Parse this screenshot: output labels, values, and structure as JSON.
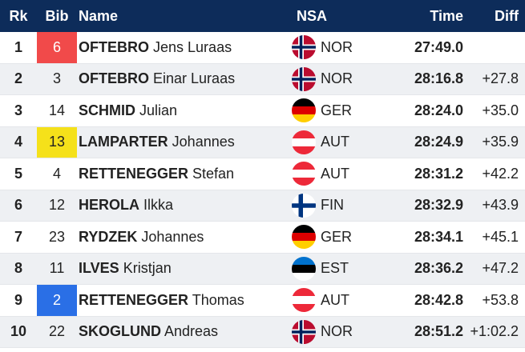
{
  "header": {
    "rk": "Rk",
    "bib": "Bib",
    "name": "Name",
    "nsa": "NSA",
    "time": "Time",
    "diff": "Diff"
  },
  "bib_colors": {
    "red": "#f14a4a",
    "yellow": "#f5e11a",
    "blue": "#2a6fe6"
  },
  "rows": [
    {
      "rk": "1",
      "bib": "6",
      "bib_color": "red",
      "surname": "OFTEBRO",
      "given": "Jens Luraas",
      "nsa": "NOR",
      "flag": "norway-flag-icon",
      "time": "27:49.0",
      "diff": ""
    },
    {
      "rk": "2",
      "bib": "3",
      "bib_color": "",
      "surname": "OFTEBRO",
      "given": "Einar Luraas",
      "nsa": "NOR",
      "flag": "norway-flag-icon",
      "time": "28:16.8",
      "diff": "+27.8"
    },
    {
      "rk": "3",
      "bib": "14",
      "bib_color": "",
      "surname": "SCHMID",
      "given": "Julian",
      "nsa": "GER",
      "flag": "germany-flag-icon",
      "time": "28:24.0",
      "diff": "+35.0"
    },
    {
      "rk": "4",
      "bib": "13",
      "bib_color": "yellow",
      "surname": "LAMPARTER",
      "given": "Johannes",
      "nsa": "AUT",
      "flag": "austria-flag-icon",
      "time": "28:24.9",
      "diff": "+35.9"
    },
    {
      "rk": "5",
      "bib": "4",
      "bib_color": "",
      "surname": "RETTENEGGER",
      "given": "Stefan",
      "nsa": "AUT",
      "flag": "austria-flag-icon",
      "time": "28:31.2",
      "diff": "+42.2"
    },
    {
      "rk": "6",
      "bib": "12",
      "bib_color": "",
      "surname": "HEROLA",
      "given": "Ilkka",
      "nsa": "FIN",
      "flag": "finland-flag-icon",
      "time": "28:32.9",
      "diff": "+43.9"
    },
    {
      "rk": "7",
      "bib": "23",
      "bib_color": "",
      "surname": "RYDZEK",
      "given": "Johannes",
      "nsa": "GER",
      "flag": "germany-flag-icon",
      "time": "28:34.1",
      "diff": "+45.1"
    },
    {
      "rk": "8",
      "bib": "11",
      "bib_color": "",
      "surname": "ILVES",
      "given": "Kristjan",
      "nsa": "EST",
      "flag": "estonia-flag-icon",
      "time": "28:36.2",
      "diff": "+47.2"
    },
    {
      "rk": "9",
      "bib": "2",
      "bib_color": "blue",
      "surname": "RETTENEGGER",
      "given": "Thomas",
      "nsa": "AUT",
      "flag": "austria-flag-icon",
      "time": "28:42.8",
      "diff": "+53.8"
    },
    {
      "rk": "10",
      "bib": "22",
      "bib_color": "",
      "surname": "SKOGLUND",
      "given": "Andreas",
      "nsa": "NOR",
      "flag": "norway-flag-icon",
      "time": "28:51.2",
      "diff": "+1:02.2"
    }
  ]
}
